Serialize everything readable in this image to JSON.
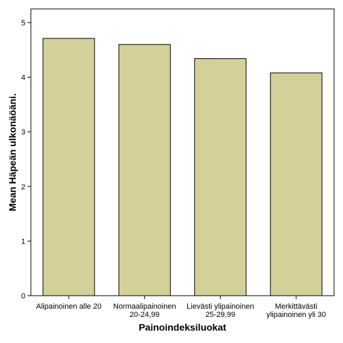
{
  "chart_data": {
    "type": "bar",
    "title": "",
    "xlabel": "Painoindeksiluokat",
    "ylabel": "Mean Häpeän ulkonäöäni.",
    "categories": [
      [
        "Alipainoinen alle 20"
      ],
      [
        "Normaalipainoinen",
        "20-24,99"
      ],
      [
        "Lievästi ylipainoinen",
        "25-29,99"
      ],
      [
        "Merkittävästi",
        "ylipainoinen yli 30"
      ]
    ],
    "values": [
      4.71,
      4.6,
      4.34,
      4.08
    ],
    "ylim": [
      0,
      5.25
    ],
    "yticks": [
      "0",
      "1",
      "2",
      "3",
      "4",
      "5"
    ],
    "grid": false,
    "colors": {
      "bar_fill": "#d4d09a",
      "bar_stroke": "#000000"
    }
  }
}
